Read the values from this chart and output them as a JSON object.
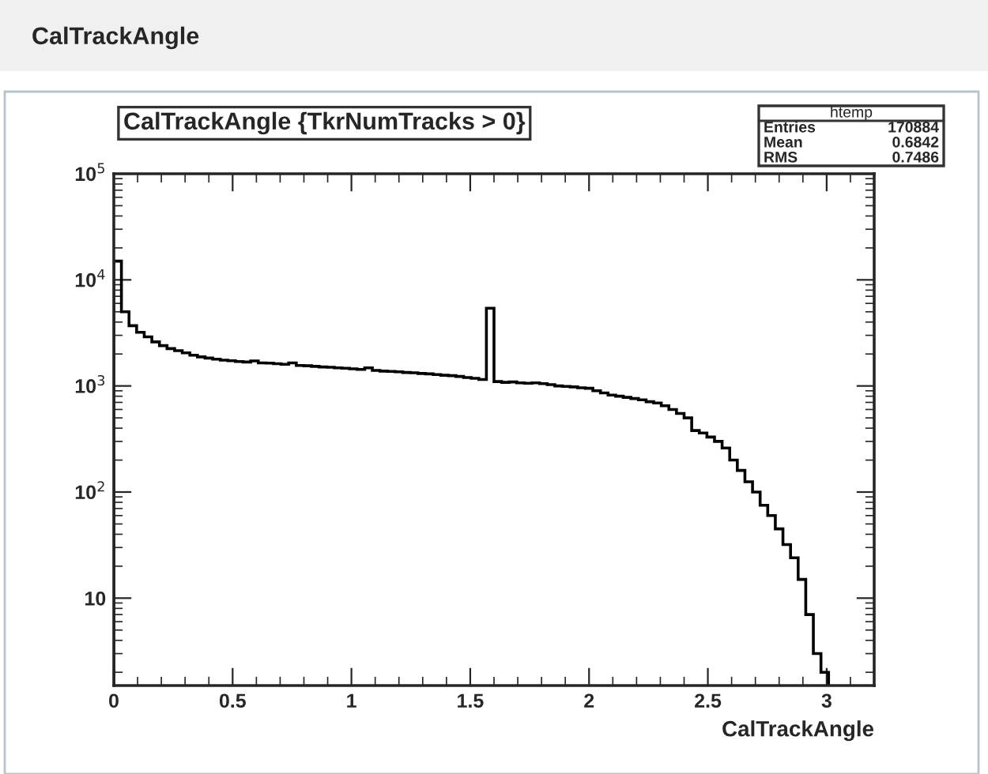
{
  "chart_data": {
    "type": "histogram",
    "title": "CalTrackAngle",
    "subtitle": "CalTrackAngle {TkrNumTracks > 0}",
    "xlabel": "CalTrackAngle",
    "annotations": [
      "htemp",
      "Entries 170884",
      "Mean 0.6842",
      "RMS 0.7486"
    ],
    "bins": [
      0,
      0.032,
      0.064,
      0.096,
      0.128,
      0.16,
      0.192,
      0.224,
      0.256,
      0.288,
      0.32,
      0.352,
      0.384,
      0.416,
      0.448,
      0.48,
      0.512,
      0.544,
      0.576,
      0.608,
      0.64,
      0.672,
      0.704,
      0.736,
      0.768,
      0.8,
      0.832,
      0.864,
      0.896,
      0.928,
      0.96,
      0.992,
      1.024,
      1.056,
      1.088,
      1.12,
      1.152,
      1.184,
      1.216,
      1.248,
      1.28,
      1.312,
      1.344,
      1.376,
      1.408,
      1.44,
      1.472,
      1.504,
      1.536,
      1.568,
      1.6,
      1.632,
      1.664,
      1.696,
      1.728,
      1.76,
      1.792,
      1.824,
      1.856,
      1.888,
      1.92,
      1.952,
      1.984,
      2.016,
      2.048,
      2.08,
      2.112,
      2.144,
      2.176,
      2.208,
      2.24,
      2.272,
      2.304,
      2.336,
      2.368,
      2.4,
      2.432,
      2.464,
      2.496,
      2.528,
      2.56,
      2.592,
      2.624,
      2.656,
      2.688,
      2.72,
      2.752,
      2.784,
      2.816,
      2.848,
      2.88,
      2.912,
      2.944,
      2.976,
      3.008
    ],
    "values": [
      15000,
      5000,
      3700,
      3200,
      2900,
      2600,
      2400,
      2250,
      2150,
      2050,
      1950,
      1880,
      1830,
      1790,
      1750,
      1730,
      1700,
      1680,
      1720,
      1650,
      1640,
      1620,
      1600,
      1650,
      1560,
      1550,
      1530,
      1510,
      1500,
      1480,
      1470,
      1450,
      1430,
      1480,
      1400,
      1380,
      1370,
      1360,
      1340,
      1330,
      1310,
      1300,
      1280,
      1260,
      1250,
      1230,
      1200,
      1180,
      1150,
      5400,
      1100,
      1080,
      1090,
      1070,
      1060,
      1070,
      1050,
      1030,
      1000,
      990,
      980,
      960,
      950,
      900,
      860,
      820,
      800,
      780,
      760,
      740,
      710,
      690,
      650,
      600,
      550,
      500,
      380,
      360,
      330,
      300,
      260,
      200,
      160,
      125,
      100,
      75,
      60,
      45,
      32,
      24,
      15,
      7,
      3,
      2
    ],
    "color": "#000000",
    "log": "y",
    "xlim": [
      0,
      3.2
    ],
    "ylim": [
      1.5,
      100000
    ],
    "xticks": [
      0,
      0.5,
      1,
      1.5,
      2,
      2.5,
      3
    ],
    "yticks": [
      10,
      {
        "value": 100,
        "label": "10$^{2}$"
      },
      {
        "value": 1000,
        "label": "10$^{3}$"
      },
      {
        "value": 10000,
        "label": "10$^{4}$"
      },
      {
        "value": 100000,
        "label": "10$^{5}$"
      }
    ],
    "grid": false,
    "legend": false
  }
}
